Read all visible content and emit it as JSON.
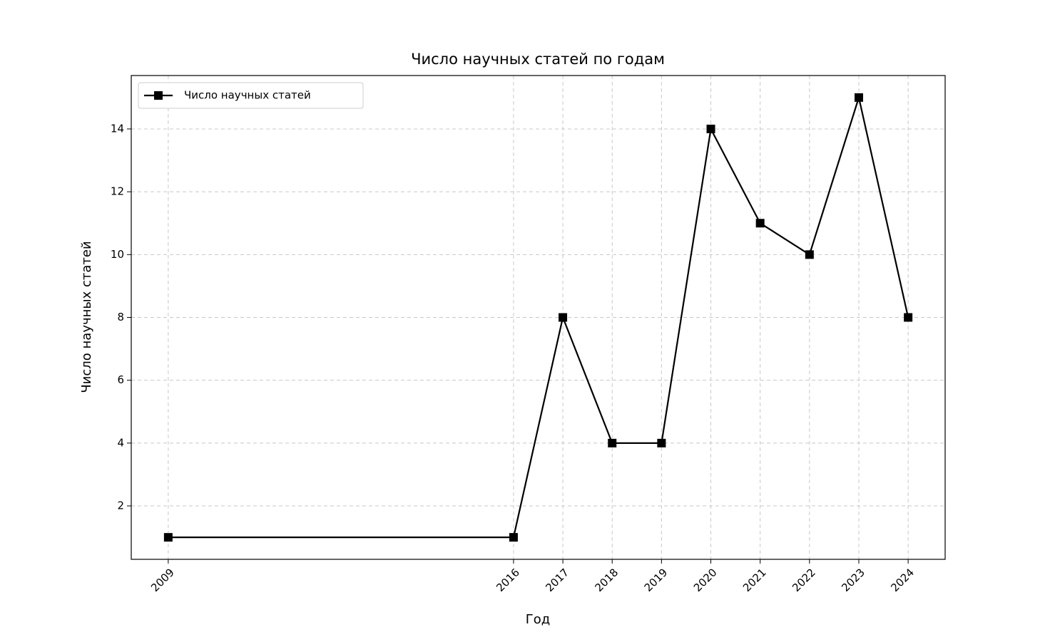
{
  "chart_data": {
    "type": "line",
    "title": "Число научных статей по годам",
    "x_label": "Год",
    "y_label": "Число научных статей",
    "x": [
      2009,
      2016,
      2017,
      2018,
      2019,
      2020,
      2021,
      2022,
      2023,
      2024
    ],
    "series": [
      {
        "name": "Число научных статей",
        "color": "#000000",
        "values": [
          1,
          1,
          8,
          4,
          4,
          14,
          11,
          10,
          15,
          8
        ]
      }
    ],
    "xlim": [
      2008.25,
      2024.75
    ],
    "xticks": [
      2009,
      2016,
      2017,
      2018,
      2019,
      2020,
      2021,
      2022,
      2023,
      2024
    ],
    "ylim": [
      0.3,
      15.7
    ],
    "yticks": [
      2,
      4,
      6,
      8,
      10,
      12,
      14
    ],
    "grid": true,
    "legend": "upper left"
  }
}
